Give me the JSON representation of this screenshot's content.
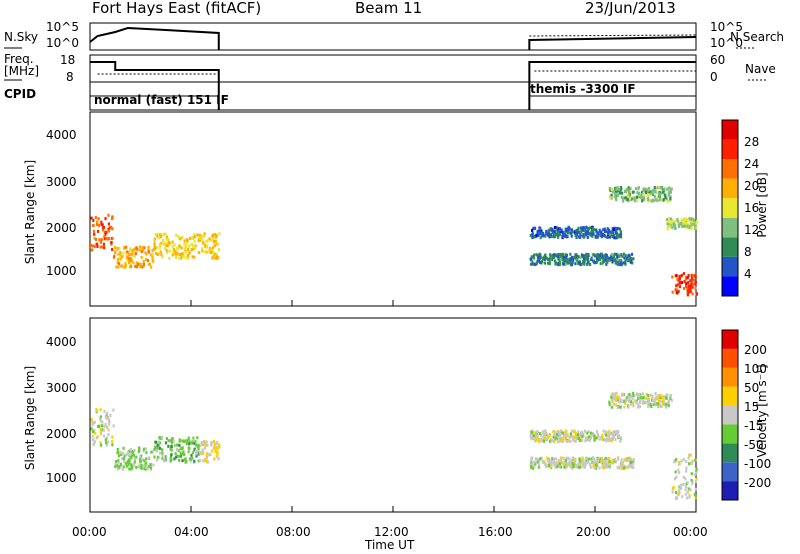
{
  "header": {
    "station": "Fort Hays East (fitACF)",
    "beam": "Beam 11",
    "date": "23/Jun/2013"
  },
  "noise_panel": {
    "left_label": "N.Sky",
    "right_label": "N.Search",
    "ticks": [
      "10^5",
      "10^0"
    ],
    "segments_hours": [
      [
        0,
        5.1
      ],
      [
        17.4,
        24
      ]
    ]
  },
  "freq_panel": {
    "left_label_line1": "Freq.",
    "left_label_line2": "[MHz]",
    "left_ticks": [
      "18",
      "8"
    ],
    "right_label": "Nave",
    "right_ticks": [
      "60",
      "0"
    ]
  },
  "cpid_panel": {
    "label": "CPID",
    "modes": [
      {
        "name": "normal (fast) 151 IF",
        "start_h": 0,
        "end_h": 5.1
      },
      {
        "name": "themis -3300 IF",
        "start_h": 17.4,
        "end_h": 24
      }
    ]
  },
  "power_panel": {
    "ylabel": "Slant Range [km]",
    "yticks": [
      "4000",
      "3000",
      "2000",
      "1000"
    ],
    "colorbar_label": "Power [dB]",
    "colorbar_ticks": [
      "28",
      "24",
      "20",
      "16",
      "12",
      "8",
      "4"
    ],
    "colors": [
      "#0000ff",
      "#2255c8",
      "#2e8b57",
      "#7fbf7f",
      "#e8e830",
      "#ffb000",
      "#ff7000",
      "#ff2000",
      "#e00000"
    ]
  },
  "velocity_panel": {
    "ylabel": "Slant Range [km]",
    "yticks": [
      "4000",
      "3000",
      "2000",
      "1000"
    ],
    "colorbar_label": "Velocity [m s⁻¹]",
    "colorbar_ticks": [
      "200",
      "100",
      "50",
      "15",
      "-15",
      "-50",
      "-100",
      "-200"
    ],
    "colors": [
      "#1e1eb4",
      "#3c64c8",
      "#2e8b57",
      "#66cc33",
      "#c8c8c8",
      "#ffd000",
      "#ff9000",
      "#ff5000",
      "#e00000"
    ]
  },
  "x_axis": {
    "label": "Time UT",
    "ticks": [
      "00:00",
      "04:00",
      "08:00",
      "12:00",
      "16:00",
      "20:00",
      "00:00"
    ]
  },
  "chart_data": {
    "type": "heatmap",
    "title": "Fort Hays East (fitACF)",
    "subtitle": "Beam 11",
    "date": "23/Jun/2013",
    "xlabel": "Time UT",
    "ylabel": "Slant Range [km]",
    "xlim_hours": [
      0,
      24
    ],
    "ylim_km": [
      180,
      4500
    ],
    "power_clim_db": [
      0,
      32
    ],
    "velocity_clim_ms": [
      -250,
      250
    ],
    "power_echo_bands": [
      {
        "t0": 0.0,
        "t1": 0.9,
        "r_center": 1850,
        "r_width": 500,
        "power_db": 24
      },
      {
        "t0": 0.9,
        "t1": 2.5,
        "r_center": 1300,
        "r_width": 300,
        "power_db": 20
      },
      {
        "t0": 2.5,
        "t1": 5.1,
        "r_center": 1550,
        "r_width": 350,
        "power_db": 18
      },
      {
        "t0": 17.4,
        "t1": 21.5,
        "r_center": 1250,
        "r_width": 150,
        "power_db": 8
      },
      {
        "t0": 17.4,
        "t1": 21.0,
        "r_center": 1850,
        "r_width": 150,
        "power_db": 6
      },
      {
        "t0": 20.5,
        "t1": 23.0,
        "r_center": 2700,
        "r_width": 200,
        "power_db": 12
      },
      {
        "t0": 22.8,
        "t1": 24.0,
        "r_center": 2050,
        "r_width": 150,
        "power_db": 14
      },
      {
        "t0": 23.0,
        "t1": 24.0,
        "r_center": 700,
        "r_width": 300,
        "power_db": 26
      }
    ],
    "velocity_echo_bands": [
      {
        "t0": 0.0,
        "t1": 0.9,
        "r_center": 2100,
        "r_width": 500,
        "velocity_ms": 0
      },
      {
        "t0": 0.9,
        "t1": 2.5,
        "r_center": 1400,
        "r_width": 300,
        "velocity_ms": -40
      },
      {
        "t0": 2.5,
        "t1": 4.3,
        "r_center": 1600,
        "r_width": 350,
        "velocity_ms": -50
      },
      {
        "t0": 4.3,
        "t1": 5.1,
        "r_center": 1550,
        "r_width": 300,
        "velocity_ms": 30
      },
      {
        "t0": 17.4,
        "t1": 21.5,
        "r_center": 1300,
        "r_width": 150,
        "velocity_ms": 0
      },
      {
        "t0": 17.4,
        "t1": 21.0,
        "r_center": 1900,
        "r_width": 150,
        "velocity_ms": 0
      },
      {
        "t0": 20.5,
        "t1": 23.0,
        "r_center": 2700,
        "r_width": 200,
        "velocity_ms": 0
      },
      {
        "t0": 23.0,
        "t1": 24.0,
        "r_center": 1000,
        "r_width": 600,
        "velocity_ms": 0
      }
    ]
  }
}
